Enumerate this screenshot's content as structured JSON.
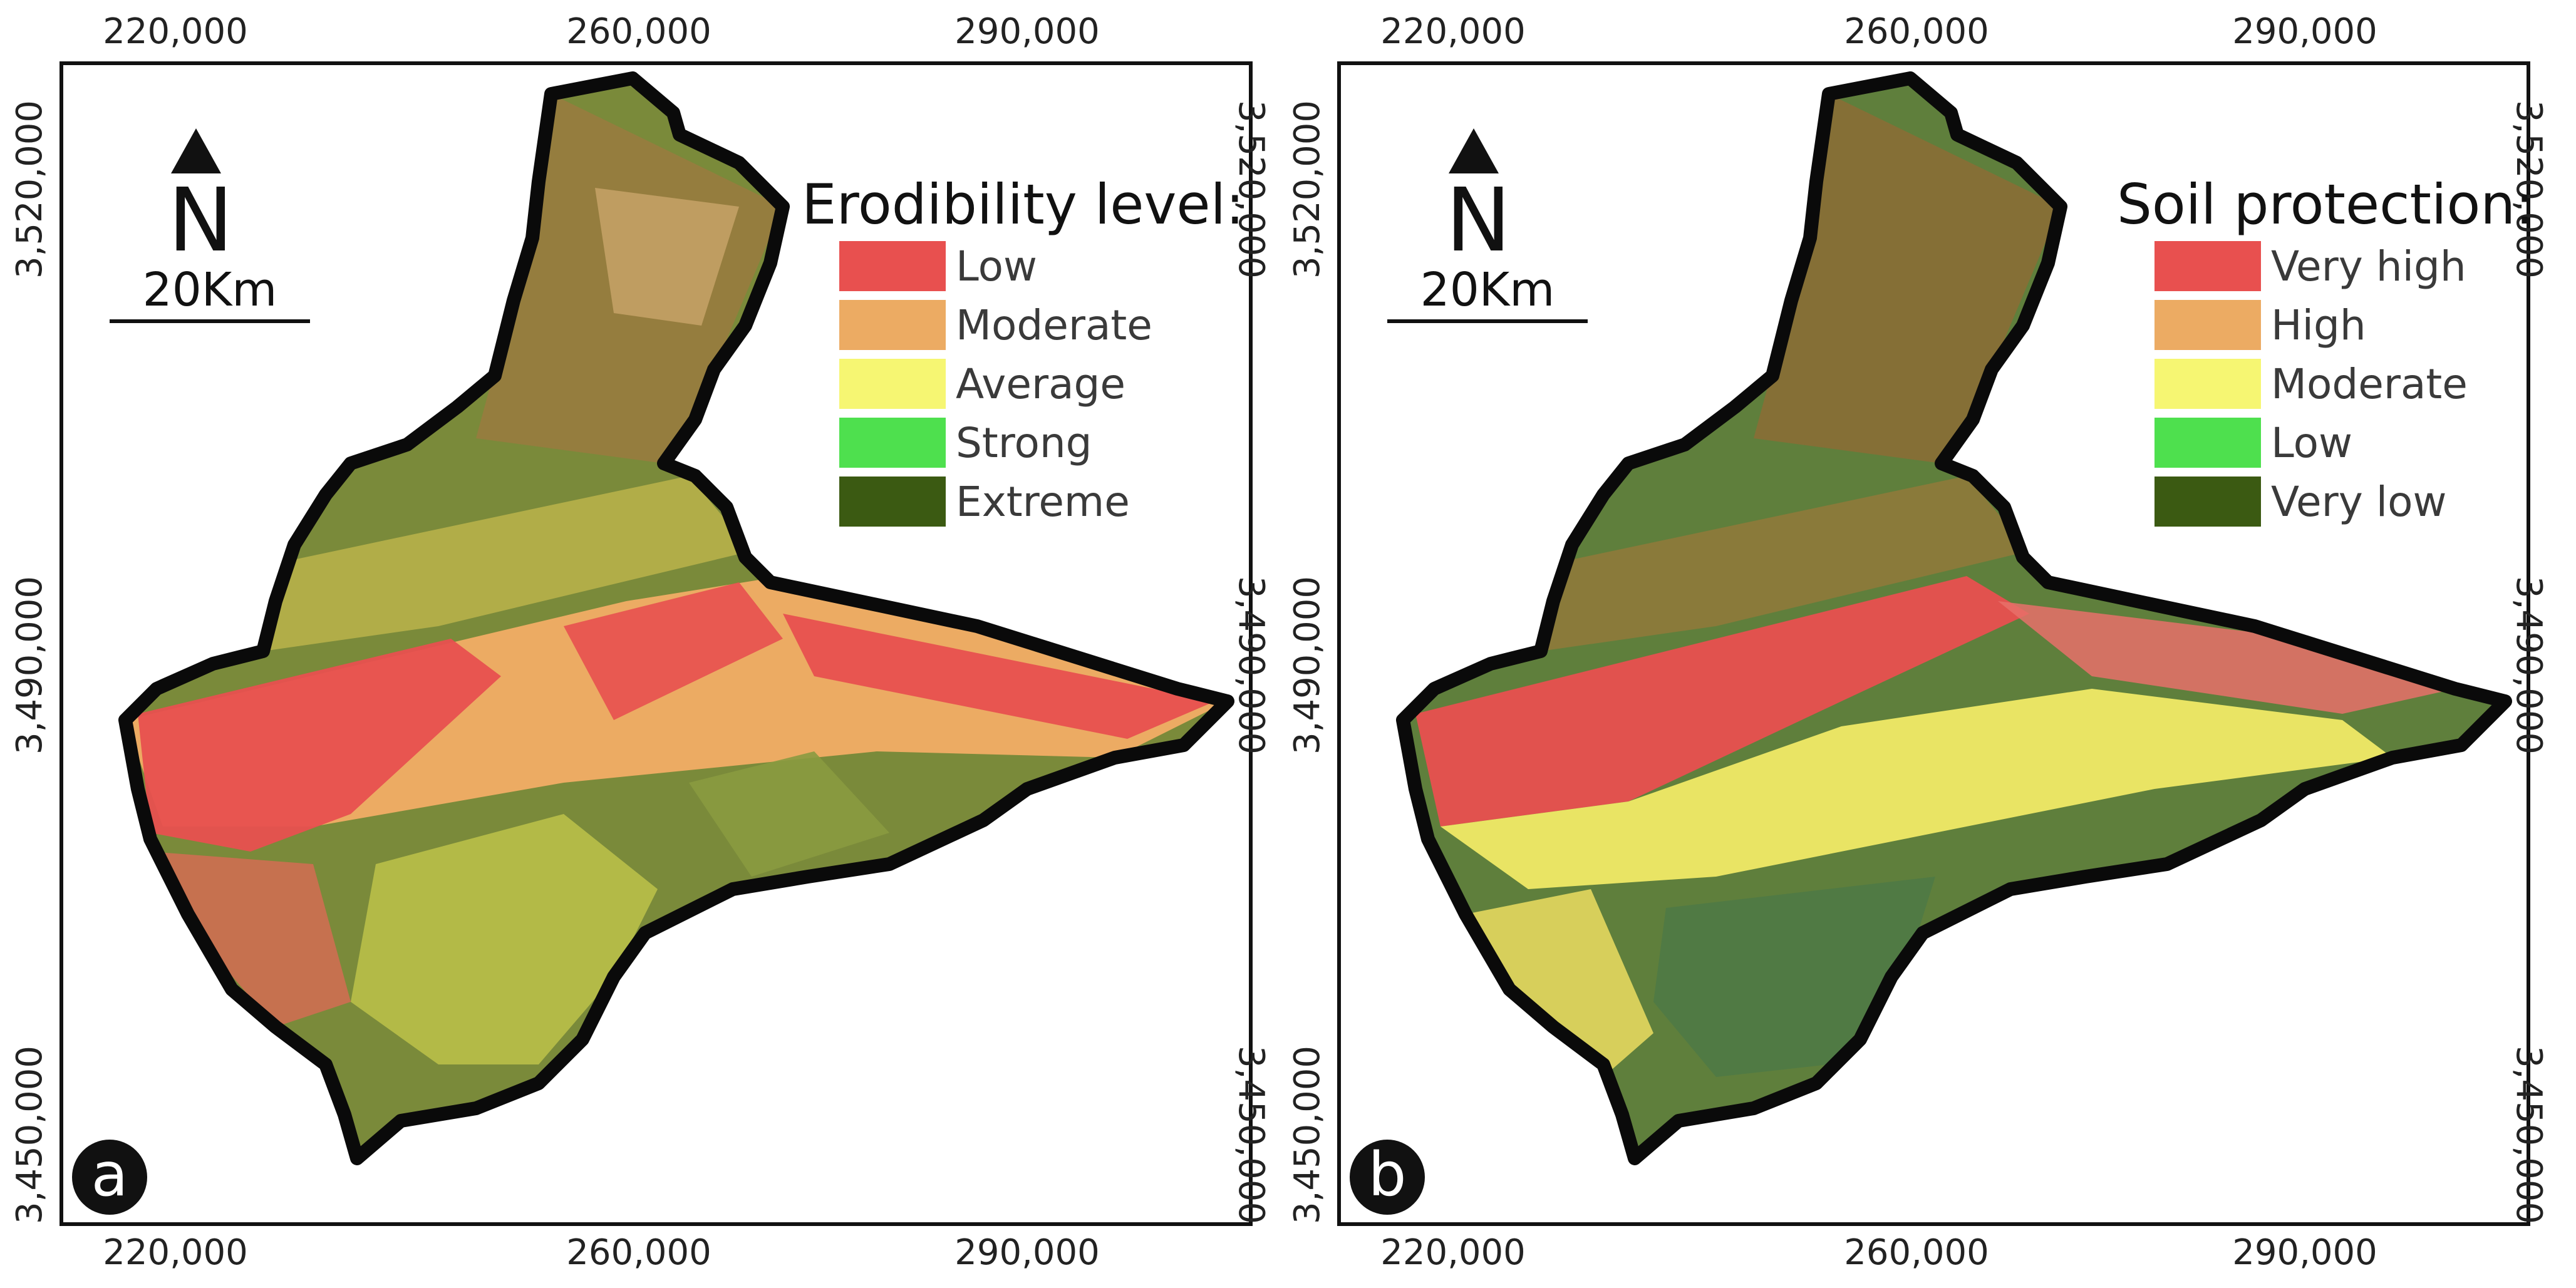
{
  "panels": [
    {
      "letter": "a",
      "legend_title": "Erodibility level:",
      "legend": [
        {
          "label": "Low",
          "color": "#e8504f"
        },
        {
          "label": "Moderate",
          "color": "#ecab63"
        },
        {
          "label": "Average",
          "color": "#f6f672"
        },
        {
          "label": "Strong",
          "color": "#4ee04e"
        },
        {
          "label": "Extreme",
          "color": "#3b5a12"
        }
      ]
    },
    {
      "letter": "b",
      "legend_title": "Soil protection:",
      "legend": [
        {
          "label": "Very high",
          "color": "#e8504f"
        },
        {
          "label": "High",
          "color": "#ecab63"
        },
        {
          "label": "Moderate",
          "color": "#f6f672"
        },
        {
          "label": "Low",
          "color": "#4ee04e"
        },
        {
          "label": "Very low",
          "color": "#3b5a12"
        }
      ]
    }
  ],
  "x_ticks": [
    "220,000",
    "260,000",
    "290,000"
  ],
  "y_ticks": [
    "3,520,000",
    "3,490,000",
    "3,450,000"
  ],
  "north_label": "N",
  "scale_label": "20Km"
}
